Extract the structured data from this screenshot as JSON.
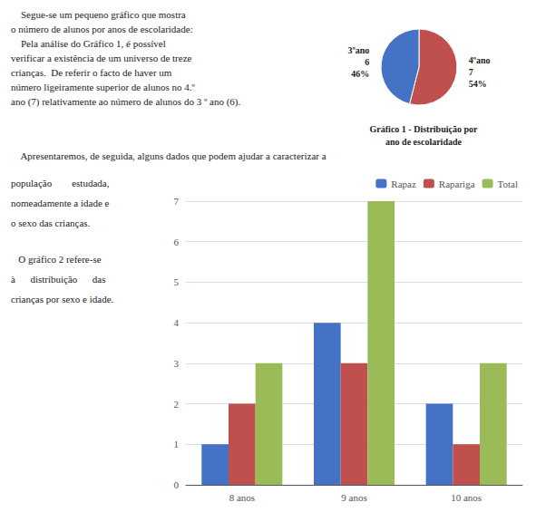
{
  "chart_data": [
    {
      "type": "pie",
      "title": "Gráfico 1 - Distribuição por\nano de escolaridade",
      "categories": [
        "4ºano",
        "3ºano"
      ],
      "values": [
        54,
        46
      ],
      "value_labels": [
        "54%",
        "46%"
      ],
      "counts": [
        7,
        6
      ],
      "colors": [
        "#c0504d",
        "#4472c4"
      ],
      "data_labels": true,
      "annotations": [
        [
          "    Segue-se um pequeno gráfico que mostra",
          "o número de alunos por anos de escolaridade:",
          "    Pela análise do Gráfico 1, é possível",
          "verificar a existência de um universo de treze",
          "crianças.  De referir o facto de haver um",
          "número ligeiramente superior de alunos no 4.º",
          "ano (7) relativamente ao número de alunos do 3 º ano (6)."
        ],
        [
          "    Apresentaremos, de seguida, alguns dados que podem ajudar a caracterizar a"
        ],
        [
          "população        estudada,",
          "nomeadamente a idade e",
          "o sexo das crianças."
        ],
        [
          "   O gráfico 2 refere-se",
          "à      distribuição      das",
          "crianças por sexo e idade."
        ]
      ]
    },
    {
      "type": "bar",
      "categories": [
        "8 anos",
        "9 anos",
        "10 anos"
      ],
      "series": [
        {
          "name": "Rapaz",
          "color": "#4472c4",
          "values": [
            1,
            4,
            2
          ]
        },
        {
          "name": "Rapariga",
          "color": "#c0504d",
          "values": [
            2,
            3,
            1
          ]
        },
        {
          "name": "Total",
          "color": "#9bbb59",
          "values": [
            3,
            7,
            3
          ]
        }
      ],
      "ylim": [
        0,
        7
      ],
      "yticks": [
        0,
        1,
        2,
        3,
        4,
        5,
        6,
        7
      ],
      "grid": true,
      "legend": "upper right"
    }
  ]
}
